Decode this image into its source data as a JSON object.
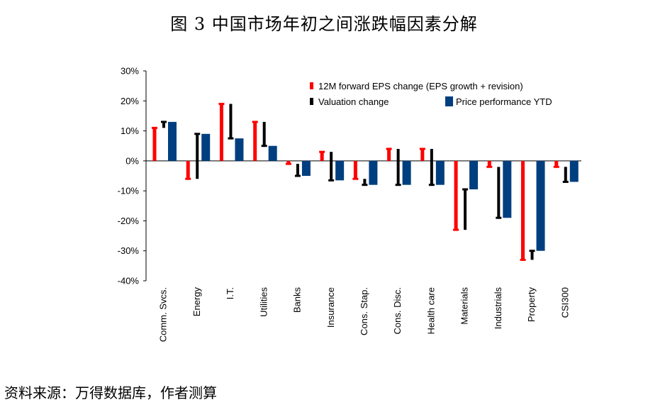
{
  "title": "图 3  中国市场年初之间涨跌幅因素分解",
  "source": "资料来源：万得数据库，作者测算",
  "chart_data": {
    "type": "bar",
    "ylim": [
      -40,
      30
    ],
    "ytick_labels": [
      "30%",
      "20%",
      "10%",
      "0%",
      "-10%",
      "-20%",
      "-30%",
      "-40%"
    ],
    "categories": [
      "Comm. Svcs.",
      "Energy",
      "I.T.",
      "Utilities",
      "Banks",
      "Insurance",
      "Cons. Stap.",
      "Cons. Disc.",
      "Health care",
      "Materials",
      "Industrials",
      "Property",
      "CSI300"
    ],
    "series": [
      {
        "name": "12M forward EPS change (EPS growth + revision)",
        "type": "waterfall-step",
        "color": "#ff0000",
        "start": [
          0,
          0,
          0,
          0,
          0,
          0,
          0,
          0,
          0,
          0,
          0,
          0,
          0
        ],
        "end": [
          11,
          -6,
          19,
          13,
          -1,
          3,
          -6,
          4,
          4,
          -23,
          -2,
          -33,
          -2
        ]
      },
      {
        "name": "Valuation change",
        "type": "waterfall-step",
        "color": "#000000",
        "start": [
          11,
          -6,
          19,
          13,
          -1,
          3,
          -6,
          4,
          4,
          -23,
          -2,
          -33,
          -2
        ],
        "end": [
          13,
          9,
          7.5,
          5,
          -5,
          -6.5,
          -8,
          -8,
          -8,
          -9.5,
          -19,
          -30,
          -7
        ]
      },
      {
        "name": "Price performance YTD",
        "type": "bar",
        "color": "#003f7f",
        "values": [
          13,
          9,
          7.5,
          5,
          -5,
          -6.5,
          -8,
          -8,
          -8,
          -9.5,
          -19,
          -30,
          -7
        ]
      }
    ],
    "legend": {
      "position": "top-right",
      "marker_red": "τ",
      "marker_black": "τ"
    },
    "grid": false
  }
}
